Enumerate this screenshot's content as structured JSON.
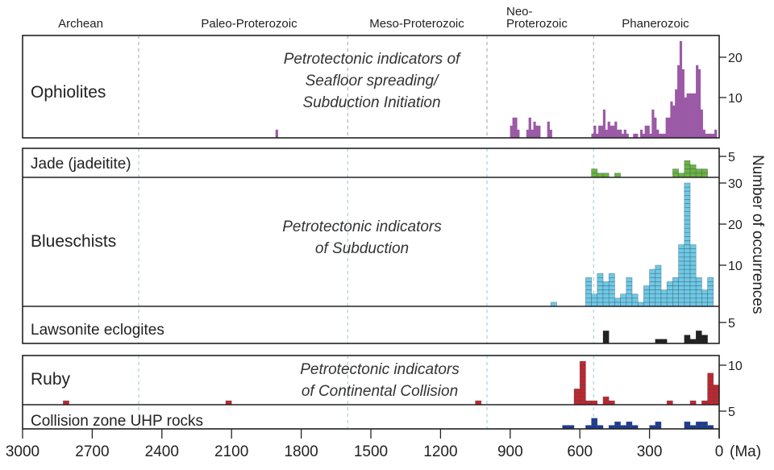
{
  "chart_data": {
    "type": "bar",
    "title": "",
    "xlabel": "(Ma)",
    "ylabel": "Number of occurrences",
    "xlim": [
      3000,
      0
    ],
    "x_ticks": [
      "3000",
      "2700",
      "2400",
      "2100",
      "1800",
      "1500",
      "1200",
      "900",
      "600",
      "300",
      "0"
    ],
    "x_tick_values": [
      3000,
      2700,
      2400,
      2100,
      1800,
      1500,
      1200,
      900,
      600,
      300,
      0
    ],
    "eons": [
      {
        "label": "Archean"
      },
      {
        "label": "Paleo-Proterozoic"
      },
      {
        "label": "Meso-Proterozoic"
      },
      {
        "label": "Neo-",
        "label2": "Proterozoic"
      },
      {
        "label": "Phanerozoic"
      }
    ],
    "eon_boundaries": [
      2500,
      1600,
      1000,
      541
    ],
    "annotations": [
      {
        "lines": [
          "Petrotectonic indicators of",
          "Seafloor spreading/",
          "Subduction Initiation"
        ]
      },
      {
        "lines": [
          "Petrotectonic indicators",
          "of Subduction"
        ]
      },
      {
        "lines": [
          "Petrotectonic indicators",
          "of Continental Collision"
        ]
      }
    ],
    "series": [
      {
        "name": "Ophiolites",
        "color": "#9b59a6",
        "style": "solid",
        "ylim": [
          0,
          25
        ],
        "y_ticks": [
          "20",
          "10"
        ],
        "y_tick_values": [
          20,
          10
        ],
        "bin_width": 10,
        "bins": [
          [
            1900,
            2
          ],
          [
            890,
            3
          ],
          [
            880,
            5
          ],
          [
            870,
            5
          ],
          [
            860,
            2
          ],
          [
            820,
            2
          ],
          [
            810,
            5
          ],
          [
            800,
            2
          ],
          [
            790,
            4
          ],
          [
            780,
            3
          ],
          [
            770,
            3
          ],
          [
            730,
            4
          ],
          [
            720,
            2
          ],
          [
            540,
            1
          ],
          [
            530,
            3
          ],
          [
            520,
            1
          ],
          [
            510,
            3
          ],
          [
            500,
            3
          ],
          [
            490,
            7
          ],
          [
            480,
            2
          ],
          [
            470,
            4
          ],
          [
            460,
            3
          ],
          [
            450,
            3
          ],
          [
            440,
            4
          ],
          [
            430,
            2
          ],
          [
            420,
            2
          ],
          [
            410,
            1
          ],
          [
            400,
            2
          ],
          [
            390,
            1
          ],
          [
            360,
            1
          ],
          [
            350,
            1
          ],
          [
            330,
            2
          ],
          [
            320,
            1
          ],
          [
            310,
            3
          ],
          [
            300,
            3
          ],
          [
            290,
            1
          ],
          [
            280,
            7
          ],
          [
            270,
            5
          ],
          [
            260,
            2
          ],
          [
            250,
            1
          ],
          [
            240,
            1
          ],
          [
            230,
            1
          ],
          [
            220,
            5
          ],
          [
            210,
            5
          ],
          [
            200,
            9
          ],
          [
            190,
            8
          ],
          [
            180,
            12
          ],
          [
            170,
            18
          ],
          [
            160,
            24
          ],
          [
            150,
            17
          ],
          [
            140,
            10
          ],
          [
            130,
            11
          ],
          [
            120,
            11
          ],
          [
            110,
            11
          ],
          [
            100,
            11
          ],
          [
            90,
            18
          ],
          [
            80,
            17
          ],
          [
            70,
            7
          ],
          [
            60,
            2
          ],
          [
            50,
            1
          ],
          [
            40,
            1
          ],
          [
            30,
            1
          ],
          [
            20,
            1
          ],
          [
            10,
            2
          ]
        ]
      },
      {
        "name": "Jade (jadeitite)",
        "color": "#6cb43f",
        "style": "cells",
        "ylim": [
          0,
          6
        ],
        "y_ticks": [
          "5"
        ],
        "y_tick_values": [
          5
        ],
        "bin_width": 25,
        "bins": [
          [
            525,
            2
          ],
          [
            500,
            1
          ],
          [
            475,
            1
          ],
          [
            425,
            1
          ],
          [
            175,
            2
          ],
          [
            150,
            1
          ],
          [
            125,
            4
          ],
          [
            100,
            3
          ],
          [
            75,
            2
          ],
          [
            50,
            2
          ]
        ]
      },
      {
        "name": "Blueschists",
        "color": "#6ec9e6",
        "style": "cells",
        "ylim": [
          0,
          31
        ],
        "y_ticks": [
          "30",
          "20",
          "10"
        ],
        "y_tick_values": [
          30,
          20,
          10
        ],
        "bin_width": 25,
        "bins": [
          [
            700,
            1
          ],
          [
            550,
            7
          ],
          [
            525,
            3
          ],
          [
            500,
            8
          ],
          [
            475,
            6
          ],
          [
            450,
            8
          ],
          [
            425,
            2
          ],
          [
            400,
            3
          ],
          [
            375,
            7
          ],
          [
            350,
            3
          ],
          [
            325,
            1
          ],
          [
            300,
            5
          ],
          [
            275,
            9
          ],
          [
            250,
            10
          ],
          [
            225,
            4
          ],
          [
            200,
            6
          ],
          [
            175,
            7
          ],
          [
            150,
            15
          ],
          [
            125,
            30
          ],
          [
            100,
            15
          ],
          [
            75,
            7
          ],
          [
            50,
            4
          ],
          [
            25,
            7
          ]
        ]
      },
      {
        "name": "Lawsonite eclogites",
        "color": "#222222",
        "style": "solid",
        "ylim": [
          0,
          6
        ],
        "y_ticks": [
          "5"
        ],
        "y_tick_values": [
          5
        ],
        "bin_width": 25,
        "bins": [
          [
            475,
            3
          ],
          [
            250,
            1
          ],
          [
            225,
            1
          ],
          [
            125,
            2
          ],
          [
            100,
            1
          ],
          [
            75,
            3
          ],
          [
            50,
            2
          ]
        ]
      },
      {
        "name": "Ruby",
        "color": "#c4252c",
        "style": "cells",
        "ylim": [
          0,
          11
        ],
        "y_ticks": [
          "10"
        ],
        "y_tick_values": [
          10
        ],
        "bin_width": 25,
        "bins": [
          [
            2800,
            1
          ],
          [
            2100,
            1
          ],
          [
            1025,
            1
          ],
          [
            600,
            4
          ],
          [
            575,
            11
          ],
          [
            550,
            1
          ],
          [
            525,
            1
          ],
          [
            475,
            2
          ],
          [
            450,
            1
          ],
          [
            200,
            1
          ],
          [
            100,
            1
          ],
          [
            50,
            1
          ],
          [
            25,
            8
          ],
          [
            0,
            5
          ]
        ]
      },
      {
        "name": "Collision zone UHP rocks",
        "color": "#1f3a93",
        "style": "cells",
        "ylim": [
          0,
          6
        ],
        "y_ticks": [
          "5"
        ],
        "y_tick_values": [
          5
        ],
        "bin_width": 25,
        "bins": [
          [
            650,
            1
          ],
          [
            625,
            1
          ],
          [
            550,
            1
          ],
          [
            525,
            3
          ],
          [
            500,
            1
          ],
          [
            450,
            1
          ],
          [
            425,
            2
          ],
          [
            400,
            1
          ],
          [
            375,
            2
          ],
          [
            350,
            1
          ],
          [
            275,
            1
          ],
          [
            250,
            2
          ],
          [
            125,
            2
          ],
          [
            100,
            1
          ],
          [
            75,
            2
          ],
          [
            50,
            2
          ],
          [
            25,
            1
          ]
        ]
      }
    ]
  }
}
